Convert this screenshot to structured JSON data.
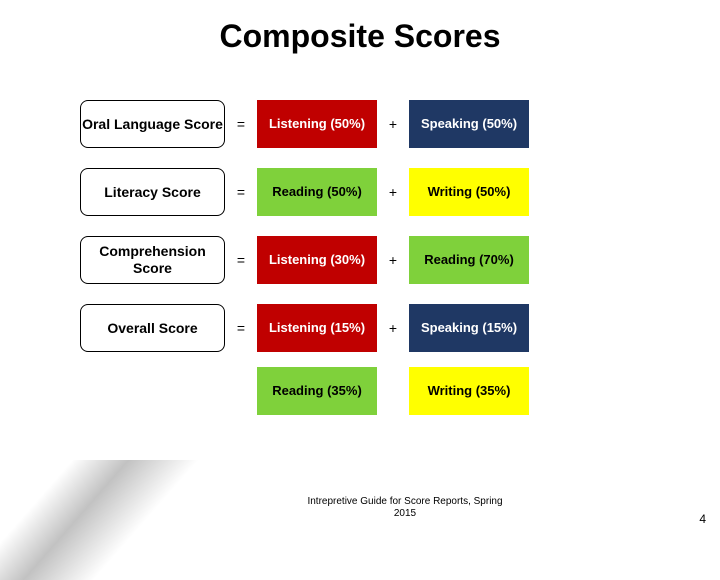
{
  "title": "Composite Scores",
  "colors": {
    "red": "#c00000",
    "blue": "#1f3864",
    "green": "#7fd13b",
    "yellow": "#ffff00"
  },
  "rows": [
    {
      "label": "Oral Language Score",
      "eq": "=",
      "c1": {
        "text": "Listening (50%)",
        "color": "red"
      },
      "plus": "+",
      "c2": {
        "text": "Speaking (50%)",
        "color": "blue"
      }
    },
    {
      "label": "Literacy Score",
      "eq": "=",
      "c1": {
        "text": "Reading (50%)",
        "color": "green"
      },
      "plus": "+",
      "c2": {
        "text": "Writing (50%)",
        "color": "yellow"
      }
    },
    {
      "label": "Comprehension Score",
      "eq": "=",
      "c1": {
        "text": "Listening (30%)",
        "color": "red"
      },
      "plus": "+",
      "c2": {
        "text": "Reading (70%)",
        "color": "green"
      }
    },
    {
      "label": "Overall Score",
      "eq": "=",
      "c1": {
        "text": "Listening (15%)",
        "color": "red"
      },
      "plus": "+",
      "c2": {
        "text": "Speaking (15%)",
        "color": "blue"
      }
    },
    {
      "label": "",
      "eq": "",
      "c1": {
        "text": "Reading (35%)",
        "color": "green"
      },
      "plus": "",
      "c2": {
        "text": "Writing (35%)",
        "color": "yellow"
      }
    }
  ],
  "footnote": "Intrepretive Guide for Score Reports, Spring 2015",
  "page": "4"
}
